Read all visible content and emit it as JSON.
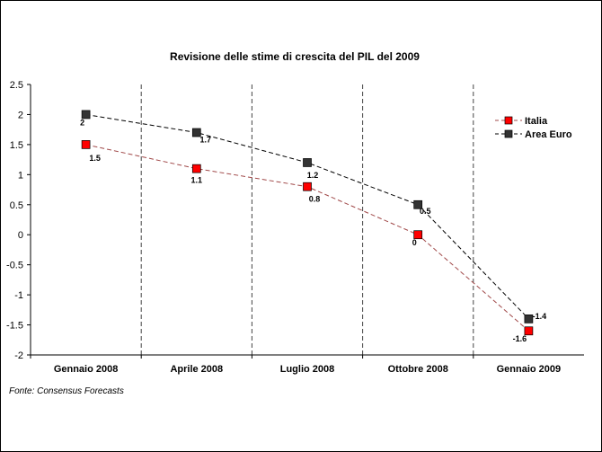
{
  "chart_data": {
    "type": "line",
    "title": "Revisione delle stime di crescita del PIL del 2009",
    "categories": [
      "Gennaio 2008",
      "Aprile 2008",
      "Luglio 2008",
      "Ottobre 2008",
      "Gennaio 2009"
    ],
    "series": [
      {
        "name": "Italia",
        "values": [
          1.5,
          1.1,
          0.8,
          0,
          -1.6
        ],
        "labels": [
          "1.5",
          "1.1",
          "0.8",
          "0",
          "-1.6"
        ],
        "color": "#ff0000",
        "line_color": "#a04848"
      },
      {
        "name": "Area Euro",
        "values": [
          2,
          1.7,
          1.2,
          0.5,
          -1.4
        ],
        "labels": [
          "2",
          "1.7",
          "1.2",
          "0.5",
          "-1.4"
        ],
        "color": "#333333",
        "line_color": "#000000"
      }
    ],
    "yticks": [
      "2.5",
      "2",
      "1.5",
      "1",
      "0.5",
      "0",
      "-0.5",
      "-1",
      "-1.5",
      "-2"
    ],
    "ylim": [
      -2,
      2.5
    ],
    "grid": "vertical dashed separators between categories",
    "legend": "top-right"
  },
  "source": "Fonte: Consensus Forecasts"
}
